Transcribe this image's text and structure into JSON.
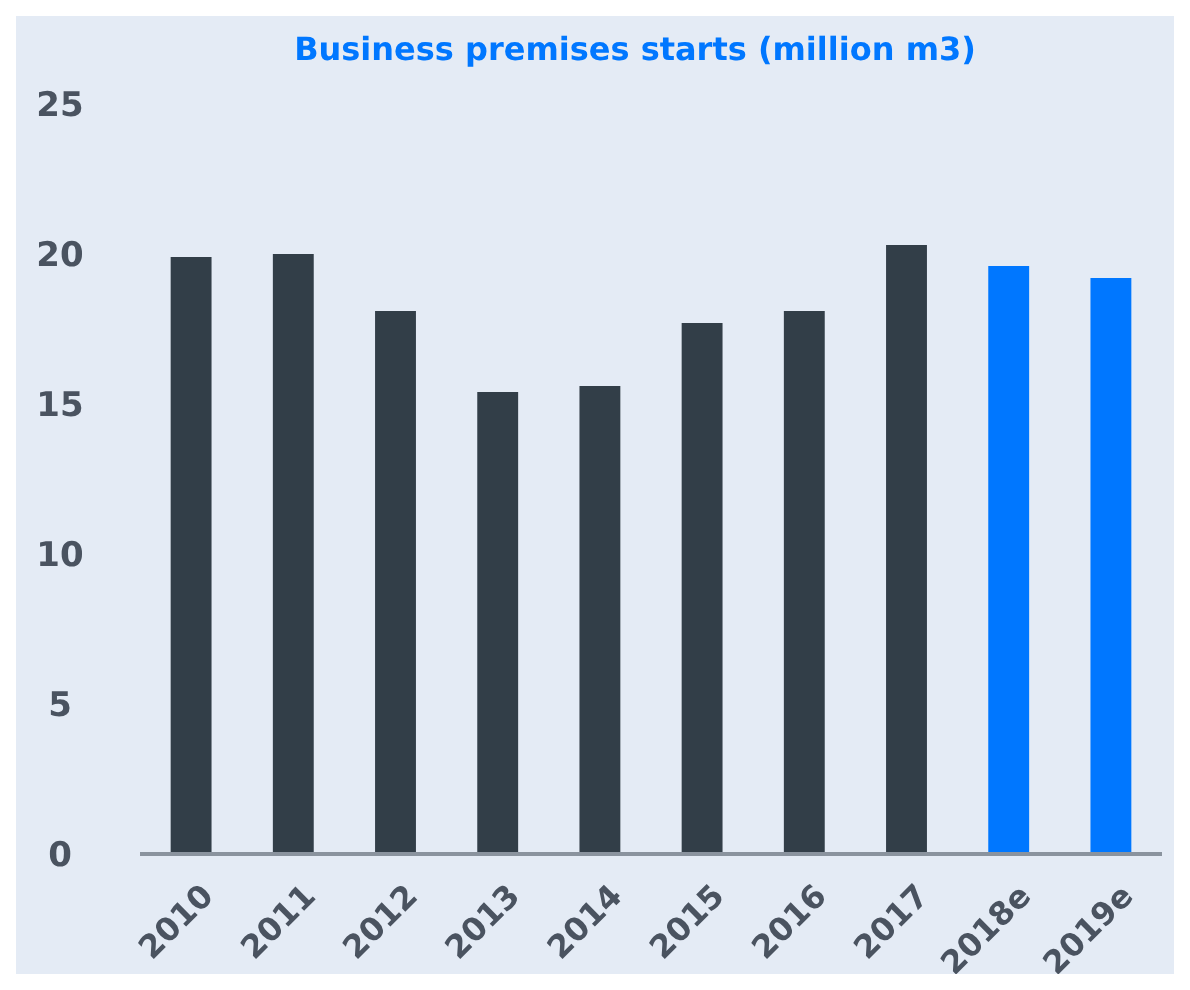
{
  "chart_data": {
    "type": "bar",
    "title": "Business premises starts (million m3)",
    "categories": [
      "2010",
      "2011",
      "2012",
      "2013",
      "2014",
      "2015",
      "2016",
      "2017",
      "2018e",
      "2019e"
    ],
    "values": [
      19.9,
      20.0,
      18.1,
      15.4,
      15.6,
      17.7,
      18.1,
      20.3,
      19.6,
      19.2
    ],
    "colors": [
      "#323e48",
      "#323e48",
      "#323e48",
      "#323e48",
      "#323e48",
      "#323e48",
      "#323e48",
      "#323e48",
      "#0077ff",
      "#0077ff"
    ],
    "ylim": [
      0,
      25
    ],
    "yticks": [
      0,
      5,
      10,
      15,
      20,
      25
    ],
    "grid": false
  }
}
